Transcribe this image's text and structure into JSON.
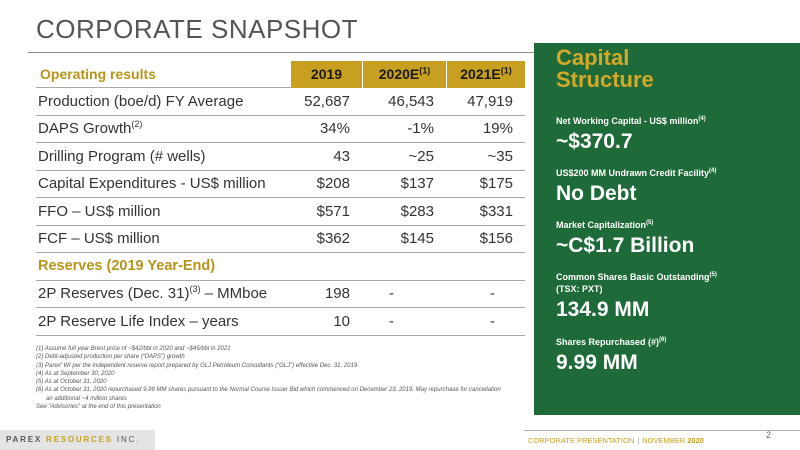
{
  "title": "CORPORATE SNAPSHOT",
  "table": {
    "header": {
      "label": "Operating results",
      "columns": [
        "2019",
        "2020E",
        "2021E"
      ],
      "column_sups": [
        "",
        "(1)",
        "(1)"
      ]
    },
    "rows": [
      {
        "label": "Production (boe/d) FY Average",
        "sup": "",
        "values": [
          "52,687",
          "46,543",
          "47,919"
        ]
      },
      {
        "label": "DAPS Growth",
        "sup": "(2)",
        "values": [
          "34%",
          "-1%",
          "19%"
        ]
      },
      {
        "label": "Drilling Program (# wells)",
        "sup": "",
        "values": [
          "43",
          "~25",
          "~35"
        ]
      },
      {
        "label": "Capital Expenditures - US$ million",
        "sup": "",
        "values": [
          "$208",
          "$137",
          "$175"
        ]
      },
      {
        "label": "FFO – US$ million",
        "sup": "",
        "values": [
          "$571",
          "$283",
          "$331"
        ]
      },
      {
        "label": "FCF – US$ million",
        "sup": "",
        "values": [
          "$362",
          "$145",
          "$156"
        ]
      }
    ],
    "section_label": "Reserves (2019 Year-End)",
    "reserve_rows": [
      {
        "label": "2P Reserves (Dec. 31)",
        "sup": "(3)",
        "suffix": " – MMboe",
        "values": [
          "198",
          "-",
          "-"
        ]
      },
      {
        "label": "2P Reserve Life Index – years",
        "sup": "",
        "suffix": "",
        "values": [
          "10",
          "-",
          "-"
        ]
      }
    ]
  },
  "footnotes": [
    "(1)  Assume full year Brent price of ~$42/bbl in 2020 and ~$45/bbl in 2021",
    "(2)  Debt-adjusted production per share (“DAPS”) growth",
    "(3)  Parex’ WI per the independent reserve report prepared by GLJ Petroleum Consultants (“GLJ”) effective Dec. 31, 2019",
    "(4)  As at September 30, 2020",
    "(5)  As at October 31, 2020",
    "(6)  As at October 31, 2020 repurchased 9.99 MM shares pursuant to the Normal Course Issuer Bid which commenced on December 23, 2019. May repurchase for cancellation",
    "an additional ~4 million shares",
    "See “Advisories” at the end of this presentation"
  ],
  "capital": {
    "title_line1": "Capital",
    "title_line2": "Structure",
    "items": [
      {
        "label": "Net Working Capital  - US$ million",
        "label2": "",
        "sup": "(4)",
        "value": "~$370.7"
      },
      {
        "label": "US$200 MM Undrawn Credit Facility",
        "label2": "",
        "sup": "(4)",
        "value": "No Debt"
      },
      {
        "label": "Market Capitalization",
        "label2": "",
        "sup": "(5)",
        "value": "~C$1.7 Billion"
      },
      {
        "label": "Common Shares Basic Outstanding",
        "label2": "(TSX: PXT)",
        "sup": "(5)",
        "value": "134.9 MM"
      },
      {
        "label": "Shares Repurchased (#)",
        "label2": "",
        "sup": "(6)",
        "value": "9.99 MM"
      }
    ]
  },
  "footer": {
    "logo_part1": "PAREX",
    "logo_part2": "RESOURCES",
    "logo_part3": "INC.",
    "text": "CORPORATE PRESENTATION",
    "separator": "|",
    "month": "NOVEMBER",
    "year": "2020",
    "page": "2"
  },
  "colors": {
    "gold": "#c8a021",
    "panel_green": "#1e6b39",
    "title_gray": "#555555"
  }
}
